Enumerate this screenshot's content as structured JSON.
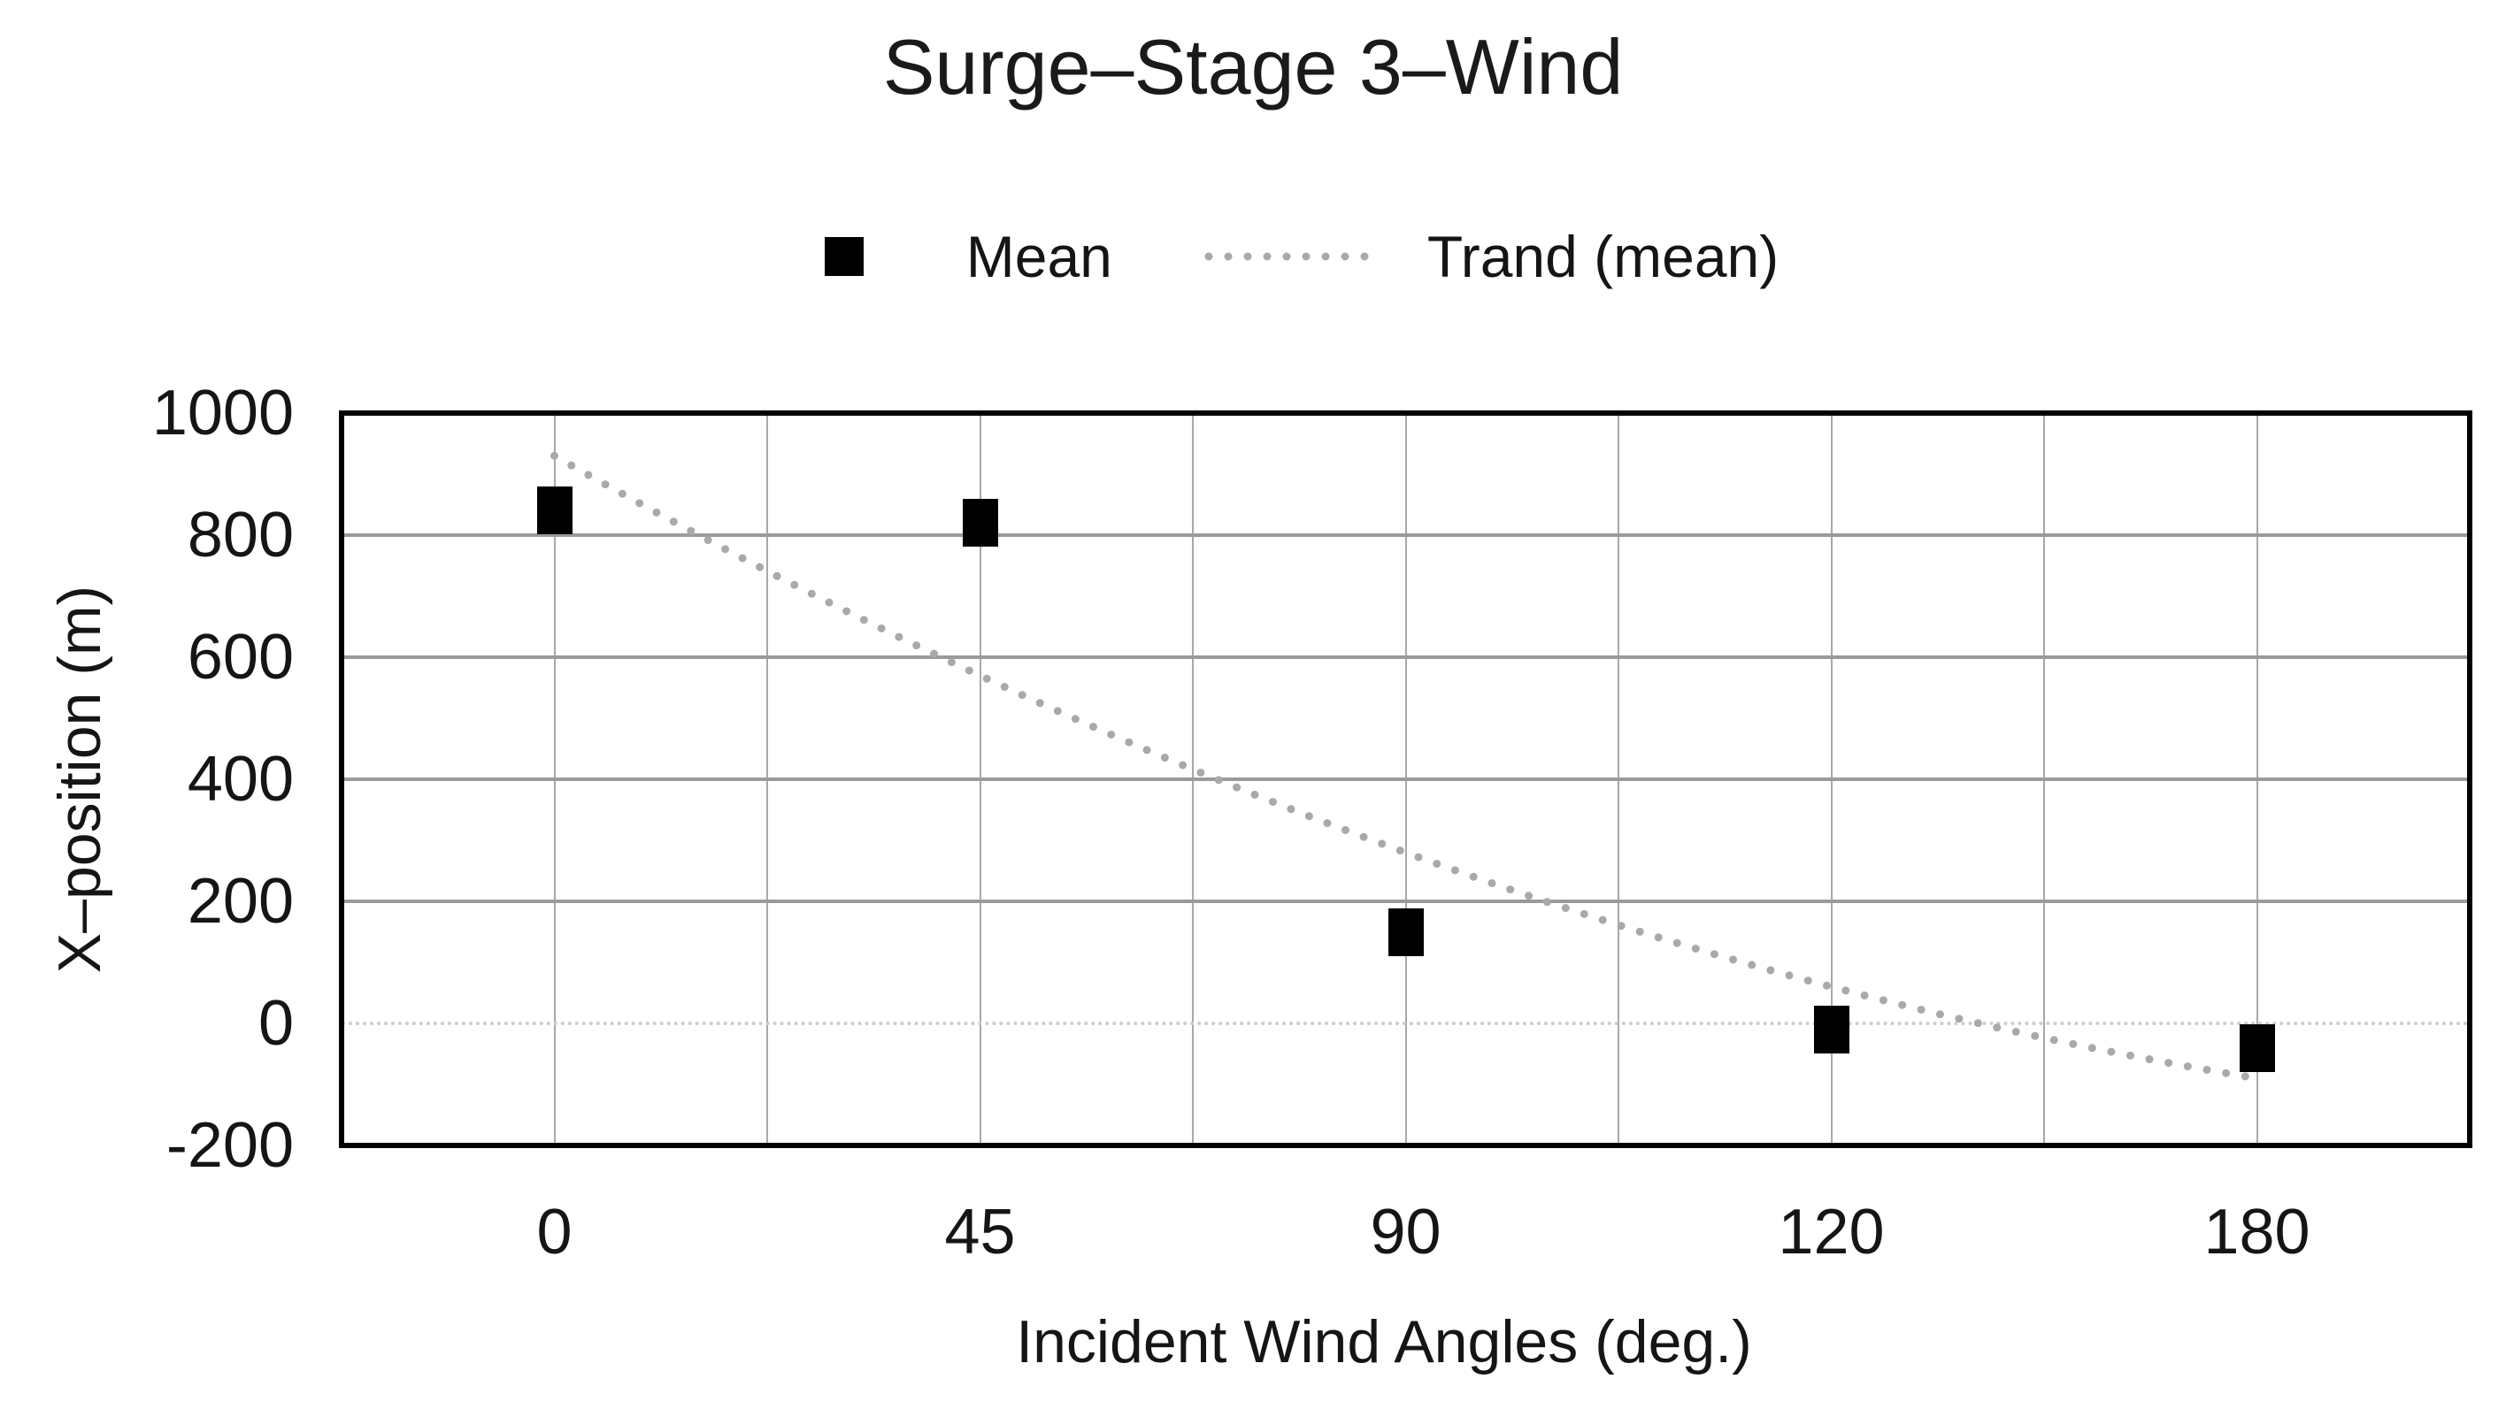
{
  "title": "Surge–Stage 3–Wind",
  "legend": {
    "items": [
      {
        "label": "Mean",
        "marker": "black-square",
        "color": "#000000"
      },
      {
        "label": "Trand (mean)",
        "marker": "dotted-line",
        "color": "#a9a9a9"
      }
    ]
  },
  "axes": {
    "x": {
      "title": "Incident Wind Angles (deg.)",
      "ticks": [
        "0",
        "45",
        "90",
        "120",
        "180"
      ]
    },
    "y": {
      "title": "X–position (m)",
      "ticks": [
        1000,
        800,
        600,
        400,
        200,
        0,
        -200
      ]
    }
  },
  "chart_data": {
    "type": "scatter",
    "title": "Surge–Stage 3–Wind",
    "x_axis_type": "categorical",
    "categories": [
      0,
      45,
      90,
      120,
      180
    ],
    "series": [
      {
        "name": "Mean",
        "type": "scatter",
        "marker": "square",
        "color": "#000000",
        "values": [
          840,
          820,
          150,
          -10,
          -40
        ]
      },
      {
        "name": "Trand (mean)",
        "type": "trendline",
        "style": "dotted",
        "color": "#a9a9a9",
        "values": [
          930,
          570,
          280,
          60,
          -90
        ]
      }
    ],
    "xlabel": "Incident Wind Angles (deg.)",
    "ylabel": "X–position (m)",
    "ylim": [
      -200,
      1000
    ],
    "yticks": [
      1000,
      800,
      600,
      400,
      200,
      0,
      -200
    ],
    "ytick_step": 200,
    "grid": true,
    "zero_gridline_style": "light-dotted",
    "legend_position": "top"
  },
  "colors": {
    "marker": "#000000",
    "trend": "#a9a9a9",
    "gridline": "#9a9a9a",
    "vertical_gridline": "#a8a8a8",
    "zero_gridline": "#cccccc",
    "plot_border": "#000000",
    "text": "#151515"
  }
}
